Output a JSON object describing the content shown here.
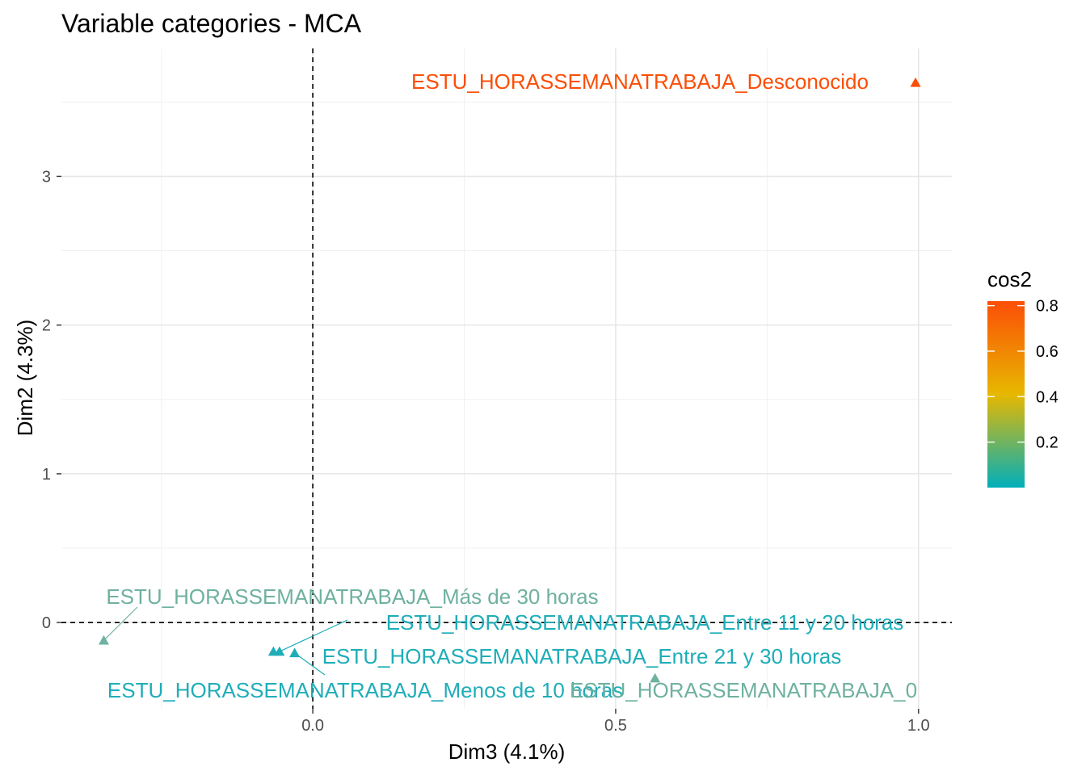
{
  "chart_data": {
    "type": "scatter",
    "title": "Variable categories - MCA",
    "xlabel": "Dim3 (4.1%)",
    "ylabel": "Dim2 (4.3%)",
    "xlim": [
      -0.415,
      1.055
    ],
    "ylim": [
      -0.58,
      3.86
    ],
    "xticks": [
      0.0,
      0.5,
      1.0
    ],
    "xtick_labels": [
      "0.0",
      "0.5",
      "1.0"
    ],
    "yticks": [
      0,
      1,
      2,
      3
    ],
    "ytick_labels": [
      "0",
      "1",
      "2",
      "3"
    ],
    "grid": true,
    "reference_lines": {
      "x": 0,
      "y": 0,
      "style": "dashed"
    },
    "marker": "triangle",
    "color_variable": "cos2",
    "points": [
      {
        "label": "ESTU_HORASSEMANATRABAJA_Desconocido",
        "x": 0.995,
        "y": 3.63,
        "cos2": 0.82,
        "color": "#fc4e07"
      },
      {
        "label": "ESTU_HORASSEMANATRABAJA_Más de 30 horas",
        "x": -0.345,
        "y": -0.12,
        "cos2": 0.2,
        "color": "#6fb1a0"
      },
      {
        "label": "ESTU_HORASSEMANATRABAJA_Entre 11 y 20 horas",
        "x": -0.055,
        "y": -0.195,
        "cos2": 0.03,
        "color": "#1fadb8"
      },
      {
        "label": "ESTU_HORASSEMANATRABAJA_Entre 21 y 30 horas",
        "x": -0.065,
        "y": -0.195,
        "cos2": 0.03,
        "color": "#1fadb8"
      },
      {
        "label": "ESTU_HORASSEMANATRABAJA_Menos de 10 horas",
        "x": -0.03,
        "y": -0.205,
        "cos2": 0.03,
        "color": "#1fadb8"
      },
      {
        "label": "ESTU_HORASSEMANATRABAJA_0",
        "x": 0.565,
        "y": -0.375,
        "cos2": 0.2,
        "color": "#6fb1a0"
      }
    ],
    "legend": {
      "title": "cos2",
      "position": "right",
      "ticks": [
        0.2,
        0.4,
        0.6,
        0.8
      ],
      "tick_labels": [
        "0.2",
        "0.4",
        "0.6",
        "0.8"
      ],
      "range": [
        0.0,
        0.82
      ],
      "gradient": [
        "#00afbb",
        "#e7b800",
        "#fc4e07"
      ]
    }
  }
}
